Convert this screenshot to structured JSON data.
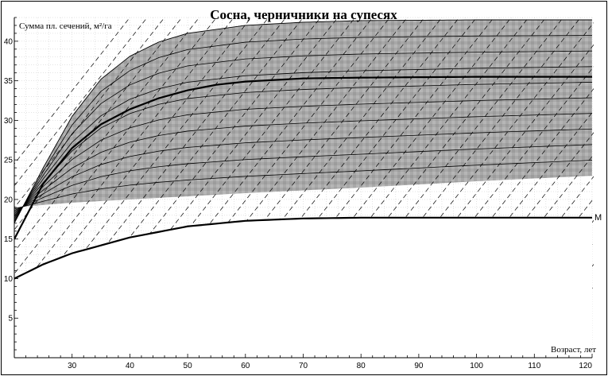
{
  "chart_data": {
    "type": "line",
    "title": "Сосна, черничники на супесях",
    "ylabel": "Сумма пл. сечений, м²/га",
    "xlabel": "Возраст, лет",
    "xlim": [
      20,
      120
    ],
    "ylim": [
      0,
      43
    ],
    "x_ticks": [
      30,
      40,
      50,
      60,
      70,
      80,
      90,
      100,
      110,
      120
    ],
    "y_ticks": [
      5,
      10,
      15,
      20,
      25,
      30,
      35,
      40
    ],
    "grid": true,
    "colors": {
      "background": "#ffffff",
      "shaded_zone": "#a9a9a9",
      "lines": "#000000",
      "grid": "#c8c8c8"
    },
    "curve_label": "M",
    "upper_envelope": [
      [
        20,
        17
      ],
      [
        25,
        24
      ],
      [
        30,
        30.5
      ],
      [
        35,
        35.2
      ],
      [
        40,
        38.1
      ],
      [
        45,
        39.9
      ],
      [
        50,
        41.0
      ],
      [
        60,
        42.0
      ],
      [
        70,
        42.4
      ],
      [
        80,
        42.6
      ],
      [
        100,
        42.7
      ],
      [
        120,
        42.7
      ]
    ],
    "shaded_lower_boundary": [
      [
        20,
        19
      ],
      [
        30,
        19.6
      ],
      [
        40,
        20
      ],
      [
        60,
        20.8
      ],
      [
        80,
        21.5
      ],
      [
        100,
        22.3
      ],
      [
        120,
        23
      ]
    ],
    "main_curve": [
      [
        20,
        15
      ],
      [
        25,
        22
      ],
      [
        30,
        26.5
      ],
      [
        35,
        29.5
      ],
      [
        40,
        31.4
      ],
      [
        45,
        32.8
      ],
      [
        50,
        33.8
      ],
      [
        55,
        34.5
      ],
      [
        60,
        34.9
      ],
      [
        70,
        35.3
      ],
      [
        80,
        35.4
      ],
      [
        100,
        35.5
      ],
      [
        120,
        35.5
      ]
    ],
    "min_curve_M": [
      [
        20,
        10
      ],
      [
        25,
        11.8
      ],
      [
        30,
        13.2
      ],
      [
        40,
        15.2
      ],
      [
        50,
        16.6
      ],
      [
        60,
        17.3
      ],
      [
        70,
        17.6
      ],
      [
        80,
        17.7
      ],
      [
        100,
        17.7
      ],
      [
        120,
        17.7
      ]
    ],
    "isolines_count": 9,
    "stocking_lines_count": 40
  }
}
